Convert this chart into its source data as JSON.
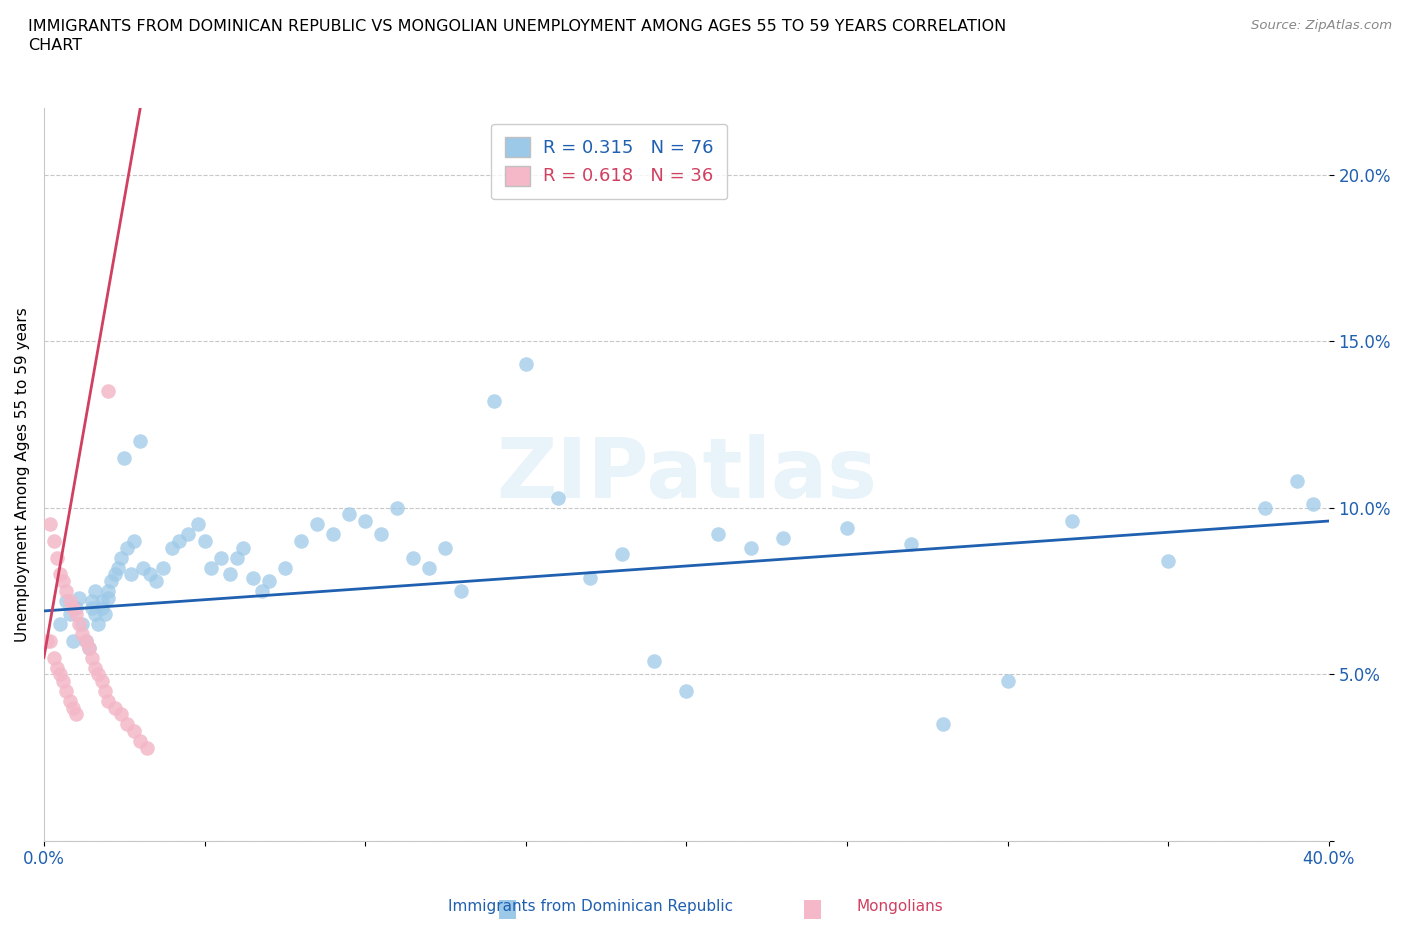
{
  "title": "IMMIGRANTS FROM DOMINICAN REPUBLIC VS MONGOLIAN UNEMPLOYMENT AMONG AGES 55 TO 59 YEARS CORRELATION\nCHART",
  "source": "Source: ZipAtlas.com",
  "ylabel": "Unemployment Among Ages 55 to 59 years",
  "xlim": [
    0.0,
    0.4
  ],
  "ylim": [
    0.0,
    0.22
  ],
  "xticks": [
    0.0,
    0.05,
    0.1,
    0.15,
    0.2,
    0.25,
    0.3,
    0.35,
    0.4
  ],
  "xticklabels": [
    "0.0%",
    "",
    "",
    "",
    "",
    "",
    "",
    "",
    "40.0%"
  ],
  "yticks": [
    0.0,
    0.05,
    0.1,
    0.15,
    0.2
  ],
  "yticklabels": [
    "",
    "5.0%",
    "10.0%",
    "15.0%",
    "20.0%"
  ],
  "blue_color": "#9dc9e8",
  "pink_color": "#f4b8c8",
  "blue_line_color": "#2060b0",
  "pink_line_color": "#d04060",
  "legend_blue_R": "R = 0.315",
  "legend_blue_N": "N = 76",
  "legend_pink_R": "R = 0.618",
  "legend_pink_N": "N = 36",
  "watermark": "ZIPatlas",
  "blue_scatter_x": [
    0.005,
    0.007,
    0.008,
    0.009,
    0.01,
    0.011,
    0.012,
    0.013,
    0.014,
    0.015,
    0.015,
    0.016,
    0.016,
    0.017,
    0.018,
    0.018,
    0.019,
    0.02,
    0.02,
    0.021,
    0.022,
    0.023,
    0.024,
    0.025,
    0.026,
    0.027,
    0.028,
    0.03,
    0.031,
    0.033,
    0.035,
    0.037,
    0.04,
    0.042,
    0.045,
    0.048,
    0.05,
    0.052,
    0.055,
    0.058,
    0.06,
    0.062,
    0.065,
    0.068,
    0.07,
    0.075,
    0.08,
    0.085,
    0.09,
    0.095,
    0.1,
    0.105,
    0.11,
    0.115,
    0.12,
    0.125,
    0.13,
    0.14,
    0.15,
    0.16,
    0.17,
    0.18,
    0.19,
    0.2,
    0.21,
    0.22,
    0.23,
    0.25,
    0.27,
    0.28,
    0.3,
    0.32,
    0.35,
    0.38,
    0.39,
    0.395
  ],
  "blue_scatter_y": [
    0.065,
    0.072,
    0.068,
    0.06,
    0.07,
    0.073,
    0.065,
    0.06,
    0.058,
    0.07,
    0.072,
    0.068,
    0.075,
    0.065,
    0.07,
    0.072,
    0.068,
    0.073,
    0.075,
    0.078,
    0.08,
    0.082,
    0.085,
    0.115,
    0.088,
    0.08,
    0.09,
    0.12,
    0.082,
    0.08,
    0.078,
    0.082,
    0.088,
    0.09,
    0.092,
    0.095,
    0.09,
    0.082,
    0.085,
    0.08,
    0.085,
    0.088,
    0.079,
    0.075,
    0.078,
    0.082,
    0.09,
    0.095,
    0.092,
    0.098,
    0.096,
    0.092,
    0.1,
    0.085,
    0.082,
    0.088,
    0.075,
    0.132,
    0.143,
    0.103,
    0.079,
    0.086,
    0.054,
    0.045,
    0.092,
    0.088,
    0.091,
    0.094,
    0.089,
    0.035,
    0.048,
    0.096,
    0.084,
    0.1,
    0.108,
    0.101
  ],
  "pink_scatter_x": [
    0.001,
    0.002,
    0.002,
    0.003,
    0.003,
    0.004,
    0.004,
    0.005,
    0.005,
    0.006,
    0.006,
    0.007,
    0.007,
    0.008,
    0.008,
    0.009,
    0.009,
    0.01,
    0.01,
    0.011,
    0.012,
    0.013,
    0.014,
    0.015,
    0.016,
    0.017,
    0.018,
    0.019,
    0.02,
    0.022,
    0.024,
    0.026,
    0.028,
    0.03,
    0.032,
    0.02
  ],
  "pink_scatter_y": [
    0.06,
    0.06,
    0.095,
    0.055,
    0.09,
    0.052,
    0.085,
    0.05,
    0.08,
    0.048,
    0.078,
    0.045,
    0.075,
    0.042,
    0.072,
    0.04,
    0.07,
    0.038,
    0.068,
    0.065,
    0.062,
    0.06,
    0.058,
    0.055,
    0.052,
    0.05,
    0.048,
    0.045,
    0.042,
    0.04,
    0.038,
    0.035,
    0.033,
    0.03,
    0.028,
    0.135
  ],
  "blue_line_x": [
    0.0,
    0.4
  ],
  "blue_line_y": [
    0.069,
    0.096
  ],
  "pink_line_x": [
    0.0,
    0.03
  ],
  "pink_line_y": [
    0.055,
    0.22
  ]
}
